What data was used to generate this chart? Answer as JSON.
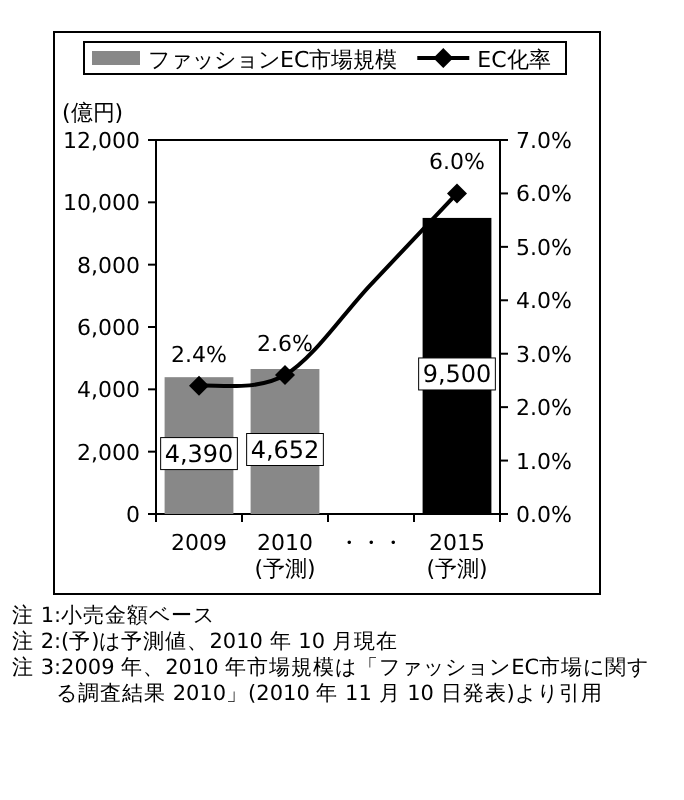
{
  "chart_data": {
    "type": "bar",
    "ylabel": "(億円)",
    "legend": "top",
    "categories": [
      "2009",
      "2010 (予測)",
      "・・・",
      "2015 (予測)"
    ],
    "series": [
      {
        "name": "ファッションEC市場規模",
        "color": "#888888",
        "colors": [
          "#888888",
          "#888888",
          null,
          "#000000"
        ],
        "values": [
          4390,
          4652,
          null,
          9500
        ],
        "value_labels": [
          "4,390",
          "4,652",
          null,
          "9,500"
        ]
      },
      {
        "name": "EC化率",
        "type": "line",
        "axis": "y2",
        "color": "#000000",
        "marker": "diamond",
        "values": [
          2.4,
          2.6,
          4.3,
          6.0
        ],
        "value_labels": [
          "2.4%",
          "2.6%",
          null,
          "6.0%"
        ]
      }
    ],
    "ylim": [
      0,
      12000
    ],
    "yticks": [
      {
        "value": 0,
        "label": "0"
      },
      {
        "value": 2000,
        "label": "2,000"
      },
      {
        "value": 4000,
        "label": "4,000"
      },
      {
        "value": 6000,
        "label": "6,000"
      },
      {
        "value": 8000,
        "label": "8,000"
      },
      {
        "value": 10000,
        "label": "10,000"
      },
      {
        "value": 12000,
        "label": "12,000"
      }
    ],
    "y2lim": [
      0,
      7
    ],
    "y2ticks": [
      {
        "value": 0,
        "label": "0.0%"
      },
      {
        "value": 1,
        "label": "1.0%"
      },
      {
        "value": 2,
        "label": "2.0%"
      },
      {
        "value": 3,
        "label": "3.0%"
      },
      {
        "value": 4,
        "label": "4.0%"
      },
      {
        "value": 5,
        "label": "5.0%"
      },
      {
        "value": 6,
        "label": "6.0%"
      },
      {
        "value": 7,
        "label": "7.0%"
      }
    ],
    "annotations": [
      "注 1:小売金額ベース",
      "注 2:(予)は予測値、2010 年 10 月現在",
      "注 3:2009 年、2010 年市場規模は「ファッションEC市場に関する調査結果 2010」(2010 年 11 月 10 日発表)より引用"
    ]
  }
}
